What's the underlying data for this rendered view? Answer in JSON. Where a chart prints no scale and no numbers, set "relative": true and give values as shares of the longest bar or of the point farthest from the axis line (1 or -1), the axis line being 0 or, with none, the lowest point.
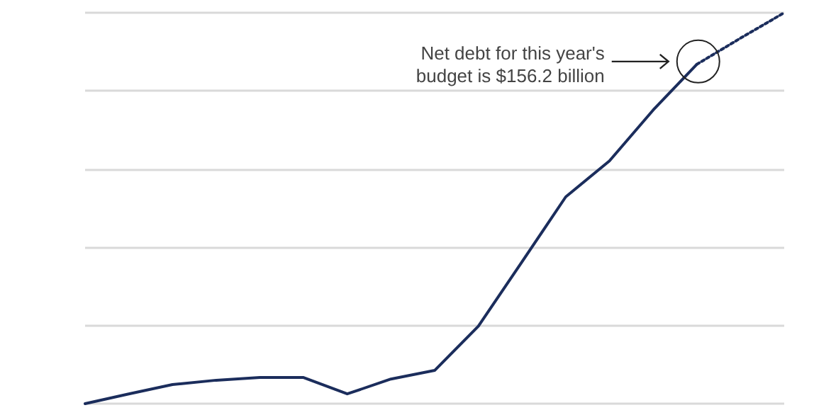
{
  "chart_data": {
    "type": "line",
    "relative": true,
    "categories": [
      null,
      null,
      null,
      null,
      null,
      null,
      null,
      null,
      null,
      null,
      null,
      null,
      null,
      null,
      null,
      null,
      null
    ],
    "series": [
      {
        "color": "#1b2d5c",
        "line_style": "solid",
        "values": [
          0,
          0.025,
          0.049,
          0.06,
          0.067,
          0.067,
          0.025,
          0.063,
          0.085,
          0.198,
          0.363,
          0.529,
          0.621,
          0.751,
          0.868,
          null,
          null
        ]
      },
      {
        "color": "#1b2d5c",
        "line_style": "dotted",
        "values": [
          null,
          null,
          null,
          null,
          null,
          null,
          null,
          null,
          null,
          null,
          null,
          null,
          null,
          null,
          0.868,
          0.935,
          1
        ]
      }
    ],
    "grid": "y",
    "marker": "none",
    "annotations": [
      "Net debt for this year's budget is $156.2 billion"
    ]
  }
}
